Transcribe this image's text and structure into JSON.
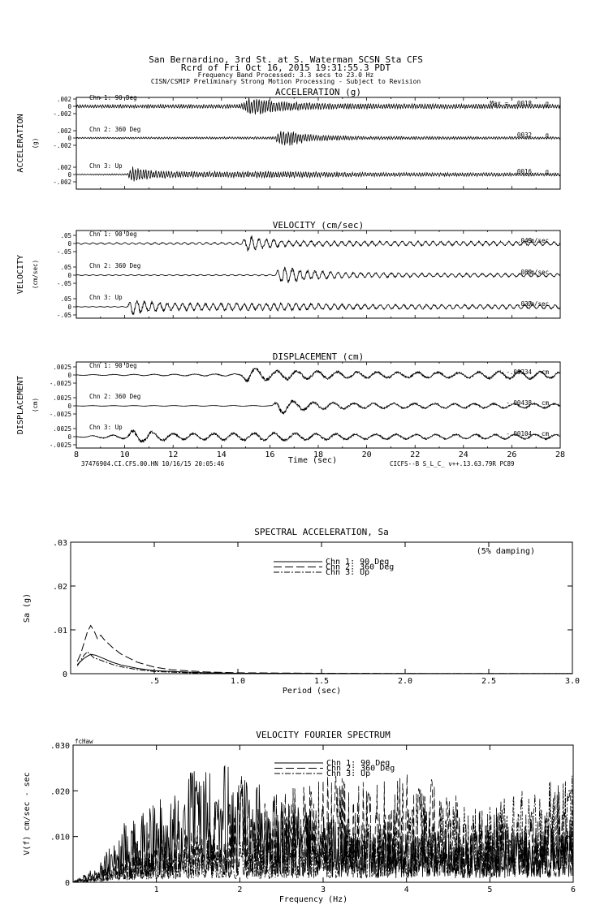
{
  "header": {
    "line1": "San Bernardino, 3rd St. at S. Waterman    SCSN Sta CFS",
    "line2": "Rcrd of Fri Oct 16, 2015 19:31:55.3 PDT",
    "line3": "Frequency Band Processed: 3.3 secs to 23.0 Hz",
    "line4": "CISN/CSMIP Preliminary Strong Motion Processing - Subject to Revision"
  },
  "chart_data": [
    {
      "type": "line",
      "title": "ACCELERATION (g)",
      "ylabel": "ACCELERATION",
      "yunit": "(g)",
      "xlim": [
        8,
        28
      ],
      "max_label": "Max =",
      "channels": [
        {
          "name": "Chn 1: 90 Deg",
          "ticks": [
            ".002",
            "0",
            "-.002"
          ],
          "max": ".0018",
          "unit": "g",
          "amp": 0.0018,
          "onset": 15.0,
          "peak_t": 15.6,
          "envelope": [
            [
              8,
              0.2
            ],
            [
              14.8,
              0.25
            ],
            [
              15.1,
              1.0
            ],
            [
              15.6,
              1.0
            ],
            [
              16.2,
              0.7
            ],
            [
              17.0,
              0.5
            ],
            [
              19.0,
              0.35
            ],
            [
              22,
              0.3
            ],
            [
              28,
              0.25
            ]
          ]
        },
        {
          "name": "Chn 2: 360 Deg",
          "ticks": [
            ".002",
            "0",
            "-.002"
          ],
          "max": ".0032",
          "unit": "g",
          "amp": 0.0032,
          "onset": 16.3,
          "peak_t": 16.7,
          "envelope": [
            [
              8,
              0.1
            ],
            [
              16.2,
              0.15
            ],
            [
              16.4,
              0.9
            ],
            [
              16.8,
              1.0
            ],
            [
              17.3,
              0.6
            ],
            [
              18.0,
              0.35
            ],
            [
              20,
              0.2
            ],
            [
              28,
              0.15
            ]
          ]
        },
        {
          "name": "Chn 3: Up",
          "ticks": [
            ".002",
            "0",
            "-.002"
          ],
          "max": ".0016",
          "unit": "g",
          "amp": 0.0016,
          "onset": 10.2,
          "peak_t": 10.4,
          "envelope": [
            [
              8,
              0.05
            ],
            [
              10.1,
              0.1
            ],
            [
              10.3,
              1.0
            ],
            [
              10.6,
              0.8
            ],
            [
              11.5,
              0.45
            ],
            [
              13,
              0.35
            ],
            [
              16.5,
              0.4
            ],
            [
              20,
              0.25
            ],
            [
              28,
              0.2
            ]
          ]
        }
      ]
    },
    {
      "type": "line",
      "title": "VELOCITY (cm/sec)",
      "ylabel": "VELOCITY",
      "yunit": "(cm/sec)",
      "xlim": [
        8,
        28
      ],
      "channels": [
        {
          "name": "Chn 1: 90 Deg",
          "ticks": [
            ".05",
            "0",
            "-.05"
          ],
          "max": ".049",
          "unit": "cm/sec",
          "amp": 0.049,
          "onset": 15.0,
          "peak_t": 15.2,
          "envelope": [
            [
              8,
              0.1
            ],
            [
              14.8,
              0.15
            ],
            [
              15.1,
              1.0
            ],
            [
              15.5,
              0.7
            ],
            [
              16.5,
              0.4
            ],
            [
              17,
              0.35
            ],
            [
              20,
              0.3
            ],
            [
              28,
              0.25
            ]
          ]
        },
        {
          "name": "Chn 2: 360 Deg",
          "ticks": [
            ".05",
            "0",
            "-.05"
          ],
          "max": ".089",
          "unit": "cm/sec",
          "amp": 0.089,
          "onset": 16.3,
          "peak_t": 16.6,
          "envelope": [
            [
              8,
              0.05
            ],
            [
              16.2,
              0.08
            ],
            [
              16.4,
              0.9
            ],
            [
              16.7,
              1.0
            ],
            [
              17.5,
              0.55
            ],
            [
              19,
              0.35
            ],
            [
              22,
              0.25
            ],
            [
              28,
              0.2
            ]
          ]
        },
        {
          "name": "Chn 3: Up",
          "ticks": [
            ".05",
            "0",
            "-.05"
          ],
          "max": ".037",
          "unit": "cm/sec",
          "amp": 0.037,
          "onset": 10.2,
          "peak_t": 10.5,
          "envelope": [
            [
              8,
              0.03
            ],
            [
              10.1,
              0.05
            ],
            [
              10.3,
              1.0
            ],
            [
              10.8,
              0.7
            ],
            [
              12,
              0.45
            ],
            [
              16.5,
              0.45
            ],
            [
              20,
              0.3
            ],
            [
              28,
              0.25
            ]
          ]
        }
      ]
    },
    {
      "type": "line",
      "title": "DISPLACEMENT (cm)",
      "ylabel": "DISPLACEMENT",
      "yunit": "(cm)",
      "xlim": [
        8,
        28
      ],
      "xlabel": "Time (sec)",
      "xticks": [
        "8",
        "10",
        "12",
        "14",
        "16",
        "18",
        "20",
        "22",
        "24",
        "26",
        "28"
      ],
      "footer_left": "37476904.CI.CFS.00.HN 10/16/15 20:05:46",
      "footer_right": "CICFS--B  S_L_C_  v++.13.63.79R PC89",
      "channels": [
        {
          "name": "Chn 1: 90 Deg",
          "ticks": [
            ".0025",
            "0",
            "-.0025"
          ],
          "max": "-.00234",
          "unit": "cm",
          "amp": 0.00234,
          "onset": 15.0,
          "peak_t": 15.1,
          "envelope": [
            [
              8,
              0.05
            ],
            [
              14.8,
              0.15
            ],
            [
              15.1,
              1.0
            ],
            [
              16,
              0.6
            ],
            [
              17,
              0.55
            ],
            [
              20,
              0.4
            ],
            [
              24,
              0.35
            ],
            [
              26,
              0.55
            ],
            [
              28,
              0.4
            ]
          ]
        },
        {
          "name": "Chn 2: 360 Deg",
          "ticks": [
            ".0025",
            "0",
            "-.0025"
          ],
          "max": "-.00438",
          "unit": "cm",
          "amp": 0.00438,
          "onset": 16.2,
          "peak_t": 16.5,
          "envelope": [
            [
              8,
              0.03
            ],
            [
              16.1,
              0.05
            ],
            [
              16.4,
              1.0
            ],
            [
              17,
              0.6
            ],
            [
              18,
              0.45
            ],
            [
              20,
              0.35
            ],
            [
              24,
              0.3
            ],
            [
              28,
              0.3
            ]
          ]
        },
        {
          "name": "Chn 3: Up",
          "ticks": [
            ".0025",
            "0",
            "-.0025"
          ],
          "max": "-.00104",
          "unit": "cm",
          "amp": 0.00104,
          "onset": 10.1,
          "peak_t": 10.3,
          "envelope": [
            [
              8,
              0.05
            ],
            [
              10.1,
              0.3
            ],
            [
              10.3,
              0.8
            ],
            [
              12,
              0.4
            ],
            [
              16.5,
              0.5
            ],
            [
              18,
              0.4
            ],
            [
              22,
              0.3
            ],
            [
              28,
              0.3
            ]
          ]
        }
      ]
    },
    {
      "type": "line",
      "title": "SPECTRAL ACCELERATION, Sa",
      "xlabel": "Period (sec)",
      "ylabel": "Sa (g)",
      "note": "(5% damping)",
      "xlim": [
        0,
        3.0
      ],
      "ylim": [
        0,
        0.03
      ],
      "xticks": [
        {
          "v": 0.5,
          "l": ".5"
        },
        {
          "v": 1.0,
          "l": "1.0"
        },
        {
          "v": 1.5,
          "l": "1.5"
        },
        {
          "v": 2.0,
          "l": "2.0"
        },
        {
          "v": 2.5,
          "l": "2.5"
        },
        {
          "v": 3.0,
          "l": "3.0"
        }
      ],
      "yticks": [
        {
          "v": 0,
          "l": "0"
        },
        {
          "v": 0.01,
          "l": ".01"
        },
        {
          "v": 0.02,
          "l": ".02"
        },
        {
          "v": 0.03,
          "l": ".03"
        }
      ],
      "series": [
        {
          "name": "Chn 1: 90 Deg",
          "dash": "",
          "x": [
            0.04,
            0.06,
            0.08,
            0.1,
            0.12,
            0.15,
            0.2,
            0.25,
            0.3,
            0.4,
            0.5,
            0.6,
            0.8,
            1.0,
            1.5,
            2.0,
            3.0
          ],
          "y": [
            0.0021,
            0.0028,
            0.0035,
            0.004,
            0.0044,
            0.0042,
            0.0034,
            0.0026,
            0.002,
            0.0012,
            0.0007,
            0.0005,
            0.0002,
            0.0001,
            5e-05,
            2e-05,
            1e-05
          ]
        },
        {
          "name": "Chn 2: 360 Deg",
          "dash": "10,4",
          "x": [
            0.04,
            0.06,
            0.08,
            0.1,
            0.12,
            0.14,
            0.16,
            0.18,
            0.2,
            0.25,
            0.3,
            0.4,
            0.5,
            0.6,
            0.8,
            1.0,
            1.5,
            2.0,
            3.0
          ],
          "y": [
            0.0028,
            0.0045,
            0.007,
            0.0095,
            0.011,
            0.0098,
            0.008,
            0.0088,
            0.0078,
            0.006,
            0.0045,
            0.0026,
            0.0015,
            0.0009,
            0.0004,
            0.0002,
            0.0001,
            4e-05,
            2e-05
          ]
        },
        {
          "name": "Chn 3: Up",
          "dash": "7,2,2,2",
          "x": [
            0.04,
            0.06,
            0.08,
            0.1,
            0.12,
            0.14,
            0.17,
            0.2,
            0.25,
            0.3,
            0.4,
            0.5,
            0.7,
            1.0,
            1.5,
            2.0,
            3.0
          ],
          "y": [
            0.0018,
            0.003,
            0.0042,
            0.005,
            0.0043,
            0.0036,
            0.0032,
            0.0028,
            0.0021,
            0.0016,
            0.0009,
            0.0005,
            0.0002,
            0.0001,
            4e-05,
            2e-05,
            1e-05
          ]
        }
      ]
    },
    {
      "type": "line",
      "title": "VELOCITY FOURIER SPECTRUM",
      "corner_label": "fcHaw",
      "xlabel": "Frequency (Hz)",
      "ylabel": "V(f)   cm/sec - sec",
      "xlim": [
        0,
        6
      ],
      "ylim": [
        0,
        0.03
      ],
      "xticks": [
        {
          "v": 1,
          "l": "1"
        },
        {
          "v": 2,
          "l": "2"
        },
        {
          "v": 3,
          "l": "3"
        },
        {
          "v": 4,
          "l": "4"
        },
        {
          "v": 5,
          "l": "5"
        },
        {
          "v": 6,
          "l": "6"
        }
      ],
      "yticks": [
        {
          "v": 0,
          "l": "0"
        },
        {
          "v": 0.01,
          "l": ".010"
        },
        {
          "v": 0.02,
          "l": ".020"
        },
        {
          "v": 0.03,
          "l": ".030"
        }
      ],
      "series": [
        {
          "name": "Chn 1: 90 Deg",
          "dash": "",
          "envelope": [
            [
              0,
              0.0002
            ],
            [
              0.3,
              0.002
            ],
            [
              0.6,
              0.007
            ],
            [
              0.9,
              0.009
            ],
            [
              1.2,
              0.012
            ],
            [
              1.5,
              0.014
            ],
            [
              2.0,
              0.014
            ],
            [
              2.5,
              0.01
            ],
            [
              3.0,
              0.008
            ],
            [
              3.5,
              0.006
            ],
            [
              4.0,
              0.006
            ],
            [
              5.0,
              0.006
            ],
            [
              6.0,
              0.007
            ]
          ],
          "peaks": [
            [
              1.48,
              0.0222
            ],
            [
              2.02,
              0.0205
            ],
            [
              1.72,
              0.0175
            ],
            [
              1.33,
              0.016
            ]
          ]
        },
        {
          "name": "Chn 2: 360 Deg",
          "dash": "10,4",
          "envelope": [
            [
              0,
              0.0001
            ],
            [
              0.3,
              0.001
            ],
            [
              0.6,
              0.004
            ],
            [
              0.9,
              0.006
            ],
            [
              1.2,
              0.007
            ],
            [
              1.5,
              0.007
            ],
            [
              2.0,
              0.009
            ],
            [
              2.5,
              0.011
            ],
            [
              3.0,
              0.013
            ],
            [
              3.5,
              0.012
            ],
            [
              4.0,
              0.013
            ],
            [
              4.5,
              0.011
            ],
            [
              5.0,
              0.008
            ],
            [
              6.0,
              0.008
            ]
          ],
          "peaks": [
            [
              3.15,
              0.0235
            ],
            [
              4.3,
              0.0225
            ],
            [
              4.15,
              0.0205
            ],
            [
              2.02,
              0.0232
            ],
            [
              3.55,
              0.0195
            ]
          ]
        },
        {
          "name": "Chn 3: Up",
          "dash": "7,2,2,2",
          "envelope": [
            [
              0,
              0.0001
            ],
            [
              0.3,
              0.001
            ],
            [
              0.6,
              0.003
            ],
            [
              1.0,
              0.004
            ],
            [
              1.5,
              0.005
            ],
            [
              2.0,
              0.005
            ],
            [
              3.0,
              0.006
            ],
            [
              3.5,
              0.007
            ],
            [
              4.0,
              0.008
            ],
            [
              4.5,
              0.009
            ],
            [
              5.0,
              0.01
            ],
            [
              5.5,
              0.011
            ],
            [
              6.0,
              0.013
            ]
          ],
          "peaks": [
            [
              5.95,
              0.019
            ],
            [
              5.5,
              0.0155
            ]
          ]
        }
      ]
    }
  ]
}
